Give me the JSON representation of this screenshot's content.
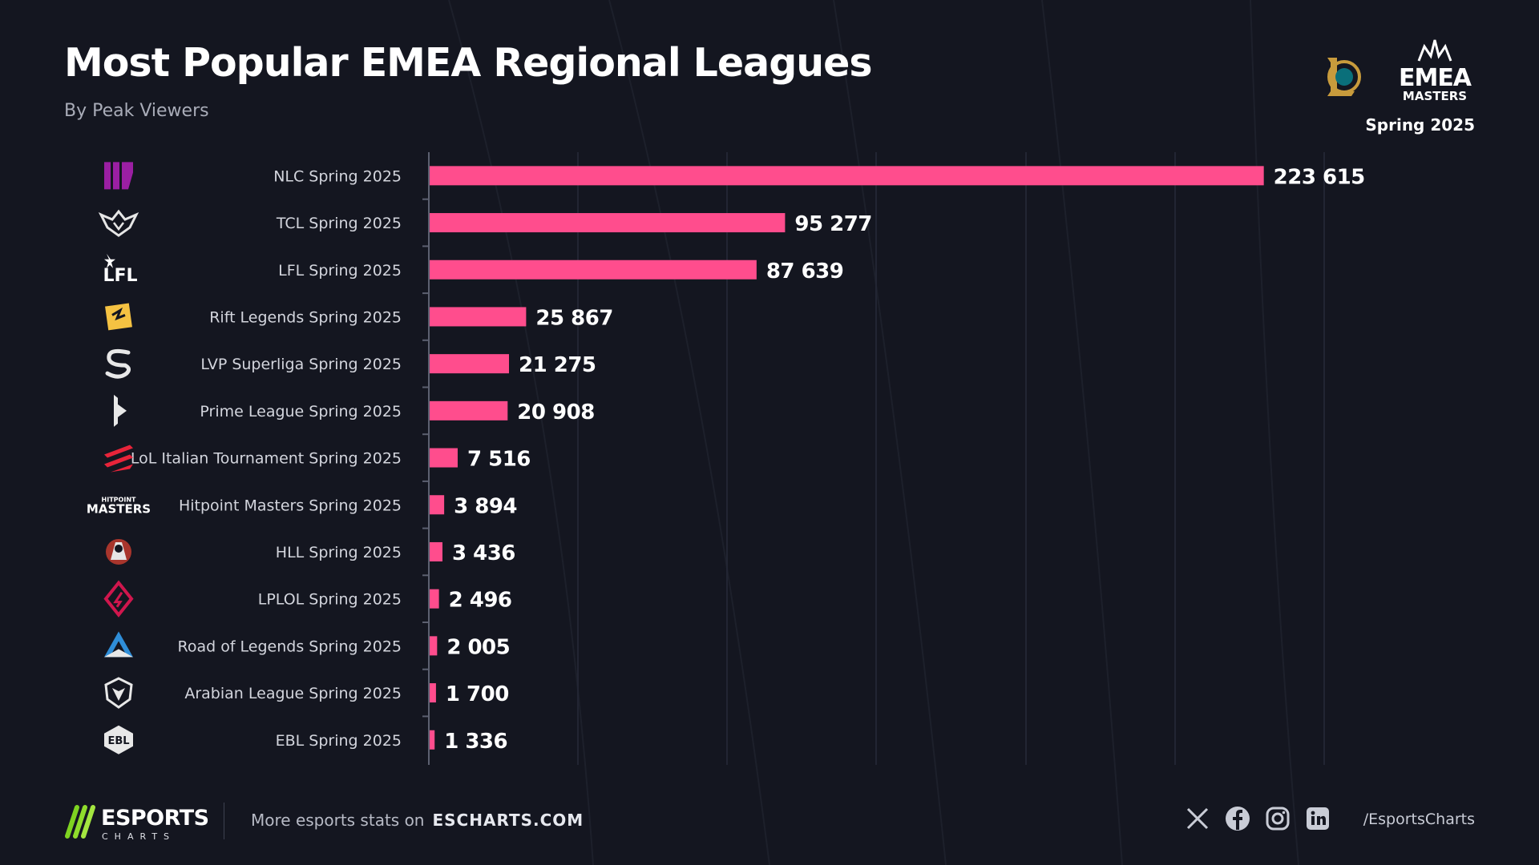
{
  "title": "Most Popular EMEA Regional Leagues",
  "subtitle": "By Peak Viewers",
  "season": "Spring 2025",
  "brand": {
    "emea_word": "EMEA",
    "emea_sub": "MASTERS"
  },
  "colors": {
    "bar": "#ff4d8d",
    "background": "#141620",
    "label": "#d3d5dd"
  },
  "chart_data": {
    "type": "bar",
    "orientation": "horizontal",
    "title": "Most Popular EMEA Regional Leagues",
    "subtitle": "By Peak Viewers",
    "xlabel": "",
    "ylabel": "",
    "xlim": [
      0,
      260000
    ],
    "grid": true,
    "categories": [
      "NLC Spring 2025",
      "TCL Spring 2025",
      "LFL Spring 2025",
      "Rift Legends Spring 2025",
      "LVP Superliga Spring 2025",
      "Prime League Spring 2025",
      "LoL Italian Tournament Spring 2025",
      "Hitpoint Masters Spring 2025",
      "HLL Spring 2025",
      "LPLOL Spring 2025",
      "Road of Legends Spring 2025",
      "Arabian League Spring 2025",
      "EBL Spring 2025"
    ],
    "values": [
      223615,
      95277,
      87639,
      25867,
      21275,
      20908,
      7516,
      3894,
      3436,
      2496,
      2005,
      1700,
      1336
    ],
    "value_labels": [
      "223 615",
      "95 277",
      "87 639",
      "25 867",
      "21 275",
      "20 908",
      "7 516",
      "3 894",
      "3 436",
      "2 496",
      "2 005",
      "1 700",
      "1 336"
    ],
    "league_icons": [
      "nlc-icon",
      "tcl-icon",
      "lfl-icon",
      "rift-legends-icon",
      "lvp-superliga-icon",
      "prime-league-icon",
      "lit-icon",
      "hitpoint-masters-icon",
      "hll-icon",
      "lplol-icon",
      "road-of-legends-icon",
      "arabian-league-icon",
      "ebl-icon"
    ],
    "icon_texts": {
      "hitpoint": [
        "HITPOINT",
        "MASTERS"
      ],
      "lfl": "LFL",
      "ebl": "EBL"
    }
  },
  "footer": {
    "logo_word": "ESPORTS",
    "logo_sub": "CHARTS",
    "text": "More esports stats on",
    "site": "ESCHARTS.COM",
    "handle": "/EsportsCharts",
    "social_icons": [
      "x-icon",
      "facebook-icon",
      "instagram-icon",
      "linkedin-icon"
    ]
  }
}
